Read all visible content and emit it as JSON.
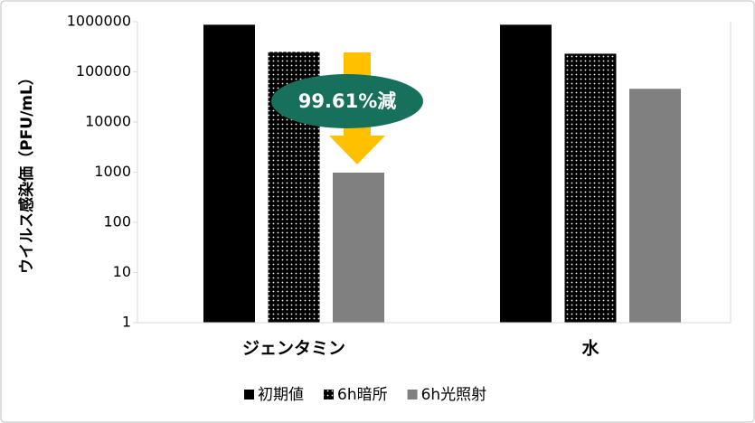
{
  "chart_data": {
    "type": "bar",
    "y_label": "ウイルス感染価（PFU/mL）",
    "categories": [
      "ジェンタミン",
      "水"
    ],
    "series": [
      {
        "name": "初期値",
        "color": "#000000",
        "values": [
          870000,
          870000
        ]
      },
      {
        "name": "6h暗所",
        "color": "#000000",
        "pattern": "dots",
        "values": [
          250000,
          230000
        ]
      },
      {
        "name": "6h光照射",
        "color": "#808080",
        "values": [
          980,
          46000
        ]
      }
    ],
    "log": true,
    "ylim": [
      1,
      1000000
    ],
    "yticks": [
      1,
      10,
      100,
      1000,
      10000,
      100000,
      1000000
    ],
    "annotation": "99.61%減",
    "legend": "bottom"
  }
}
